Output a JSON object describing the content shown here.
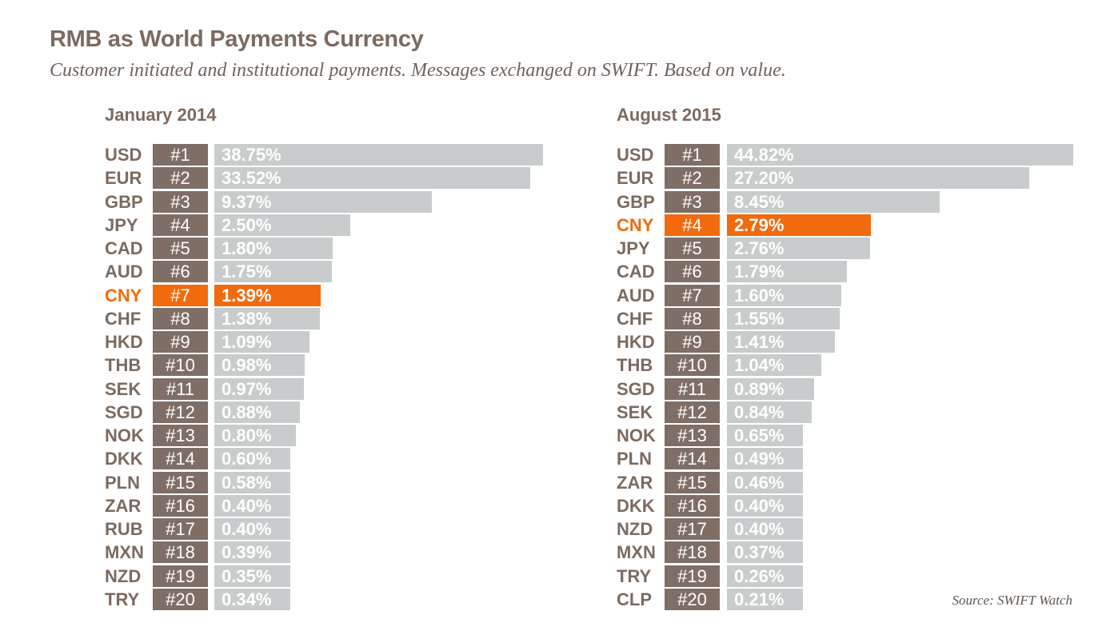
{
  "title": "RMB as World Payments Currency",
  "subtitle": "Customer initiated and institutional payments. Messages exchanged on SWIFT. Based on value.",
  "source": "Source: SWIFT Watch",
  "colors": {
    "bar": "#c8cccc",
    "rank": "#7e6e66",
    "highlight": "#f26a0e",
    "text": "#7c6a5f"
  },
  "chart_data": [
    {
      "type": "bar",
      "orientation": "horizontal",
      "title": "January 2014",
      "highlight": "CNY",
      "unit": "%",
      "xlim": [
        0,
        45
      ],
      "categories": [
        "USD",
        "EUR",
        "GBP",
        "JPY",
        "CAD",
        "AUD",
        "CNY",
        "CHF",
        "HKD",
        "THB",
        "SEK",
        "SGD",
        "NOK",
        "DKK",
        "PLN",
        "ZAR",
        "RUB",
        "MXN",
        "NZD",
        "TRY"
      ],
      "ranks": [
        "#1",
        "#2",
        "#3",
        "#4",
        "#5",
        "#6",
        "#7",
        "#8",
        "#9",
        "#10",
        "#11",
        "#12",
        "#13",
        "#14",
        "#15",
        "#16",
        "#17",
        "#18",
        "#19",
        "#20"
      ],
      "values": [
        38.75,
        33.52,
        9.37,
        2.5,
        1.8,
        1.75,
        1.39,
        1.38,
        1.09,
        0.98,
        0.97,
        0.88,
        0.8,
        0.6,
        0.58,
        0.4,
        0.4,
        0.39,
        0.35,
        0.34
      ],
      "labels": [
        "38.75%",
        "33.52%",
        "9.37%",
        "2.50%",
        "1.80%",
        "1.75%",
        "1.39%",
        "1.38%",
        "1.09%",
        "0.98%",
        "0.97%",
        "0.88%",
        "0.80%",
        "0.60%",
        "0.58%",
        "0.40%",
        "0.40%",
        "0.39%",
        "0.35%",
        "0.34%"
      ]
    },
    {
      "type": "bar",
      "orientation": "horizontal",
      "title": "August 2015",
      "highlight": "CNY",
      "unit": "%",
      "xlim": [
        0,
        45
      ],
      "categories": [
        "USD",
        "EUR",
        "GBP",
        "CNY",
        "JPY",
        "CAD",
        "AUD",
        "CHF",
        "HKD",
        "THB",
        "SGD",
        "SEK",
        "NOK",
        "PLN",
        "ZAR",
        "DKK",
        "NZD",
        "MXN",
        "TRY",
        "CLP"
      ],
      "ranks": [
        "#1",
        "#2",
        "#3",
        "#4",
        "#5",
        "#6",
        "#7",
        "#8",
        "#9",
        "#10",
        "#11",
        "#12",
        "#13",
        "#14",
        "#15",
        "#16",
        "#17",
        "#18",
        "#19",
        "#20"
      ],
      "values": [
        44.82,
        27.2,
        8.45,
        2.79,
        2.76,
        1.79,
        1.6,
        1.55,
        1.41,
        1.04,
        0.89,
        0.84,
        0.65,
        0.49,
        0.46,
        0.4,
        0.4,
        0.37,
        0.26,
        0.21
      ],
      "labels": [
        "44.82%",
        "27.20%",
        "8.45%",
        "2.79%",
        "2.76%",
        "1.79%",
        "1.60%",
        "1.55%",
        "1.41%",
        "1.04%",
        "0.89%",
        "0.84%",
        "0.65%",
        "0.49%",
        "0.46%",
        "0.40%",
        "0.40%",
        "0.37%",
        "0.26%",
        "0.21%"
      ]
    }
  ]
}
